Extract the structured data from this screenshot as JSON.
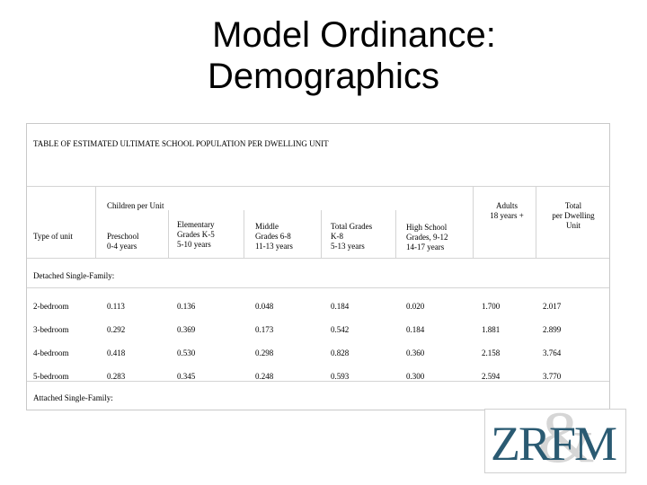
{
  "title": {
    "line1": "Model Ordinance:",
    "line2": "Demographics"
  },
  "table": {
    "caption": "TABLE OF ESTIMATED ULTIMATE SCHOOL POPULATION PER DWELLING UNIT",
    "group_header": "Children per Unit",
    "headers": {
      "type": "Type of unit",
      "preschool": [
        "Preschool",
        "0-4 years"
      ],
      "elementary": [
        "Elementary",
        "Grades K-5",
        "5-10 years"
      ],
      "middle": [
        "Middle",
        "Grades 6-8",
        "11-13 years"
      ],
      "total_grades": [
        "Total Grades",
        "K-8",
        "5-13 years"
      ],
      "high_school": [
        "High School",
        "Grades, 9-12",
        "14-17 years"
      ],
      "adults": [
        "Adults",
        "18 years +"
      ],
      "total_dwelling": [
        "Total",
        "per Dwelling",
        "Unit"
      ]
    },
    "sections": {
      "detached": "Detached Single-Family:",
      "attached": "Attached Single-Family:"
    },
    "rows": [
      [
        "2-bedroom",
        "0.113",
        "0.136",
        "0.048",
        "0.184",
        "0.020",
        "1.700",
        "2.017"
      ],
      [
        "3-bedroom",
        "0.292",
        "0.369",
        "0.173",
        "0.542",
        "0.184",
        "1.881",
        "2.899"
      ],
      [
        "4-bedroom",
        "0.418",
        "0.530",
        "0.298",
        "0.828",
        "0.360",
        "2.158",
        "3.764"
      ],
      [
        "5-bedroom",
        "0.283",
        "0.345",
        "0.248",
        "0.593",
        "0.300",
        "2.594",
        "3.770"
      ]
    ]
  },
  "logo": {
    "text": "ZRFM",
    "ampersand": "&",
    "color": "#2a5a72"
  }
}
